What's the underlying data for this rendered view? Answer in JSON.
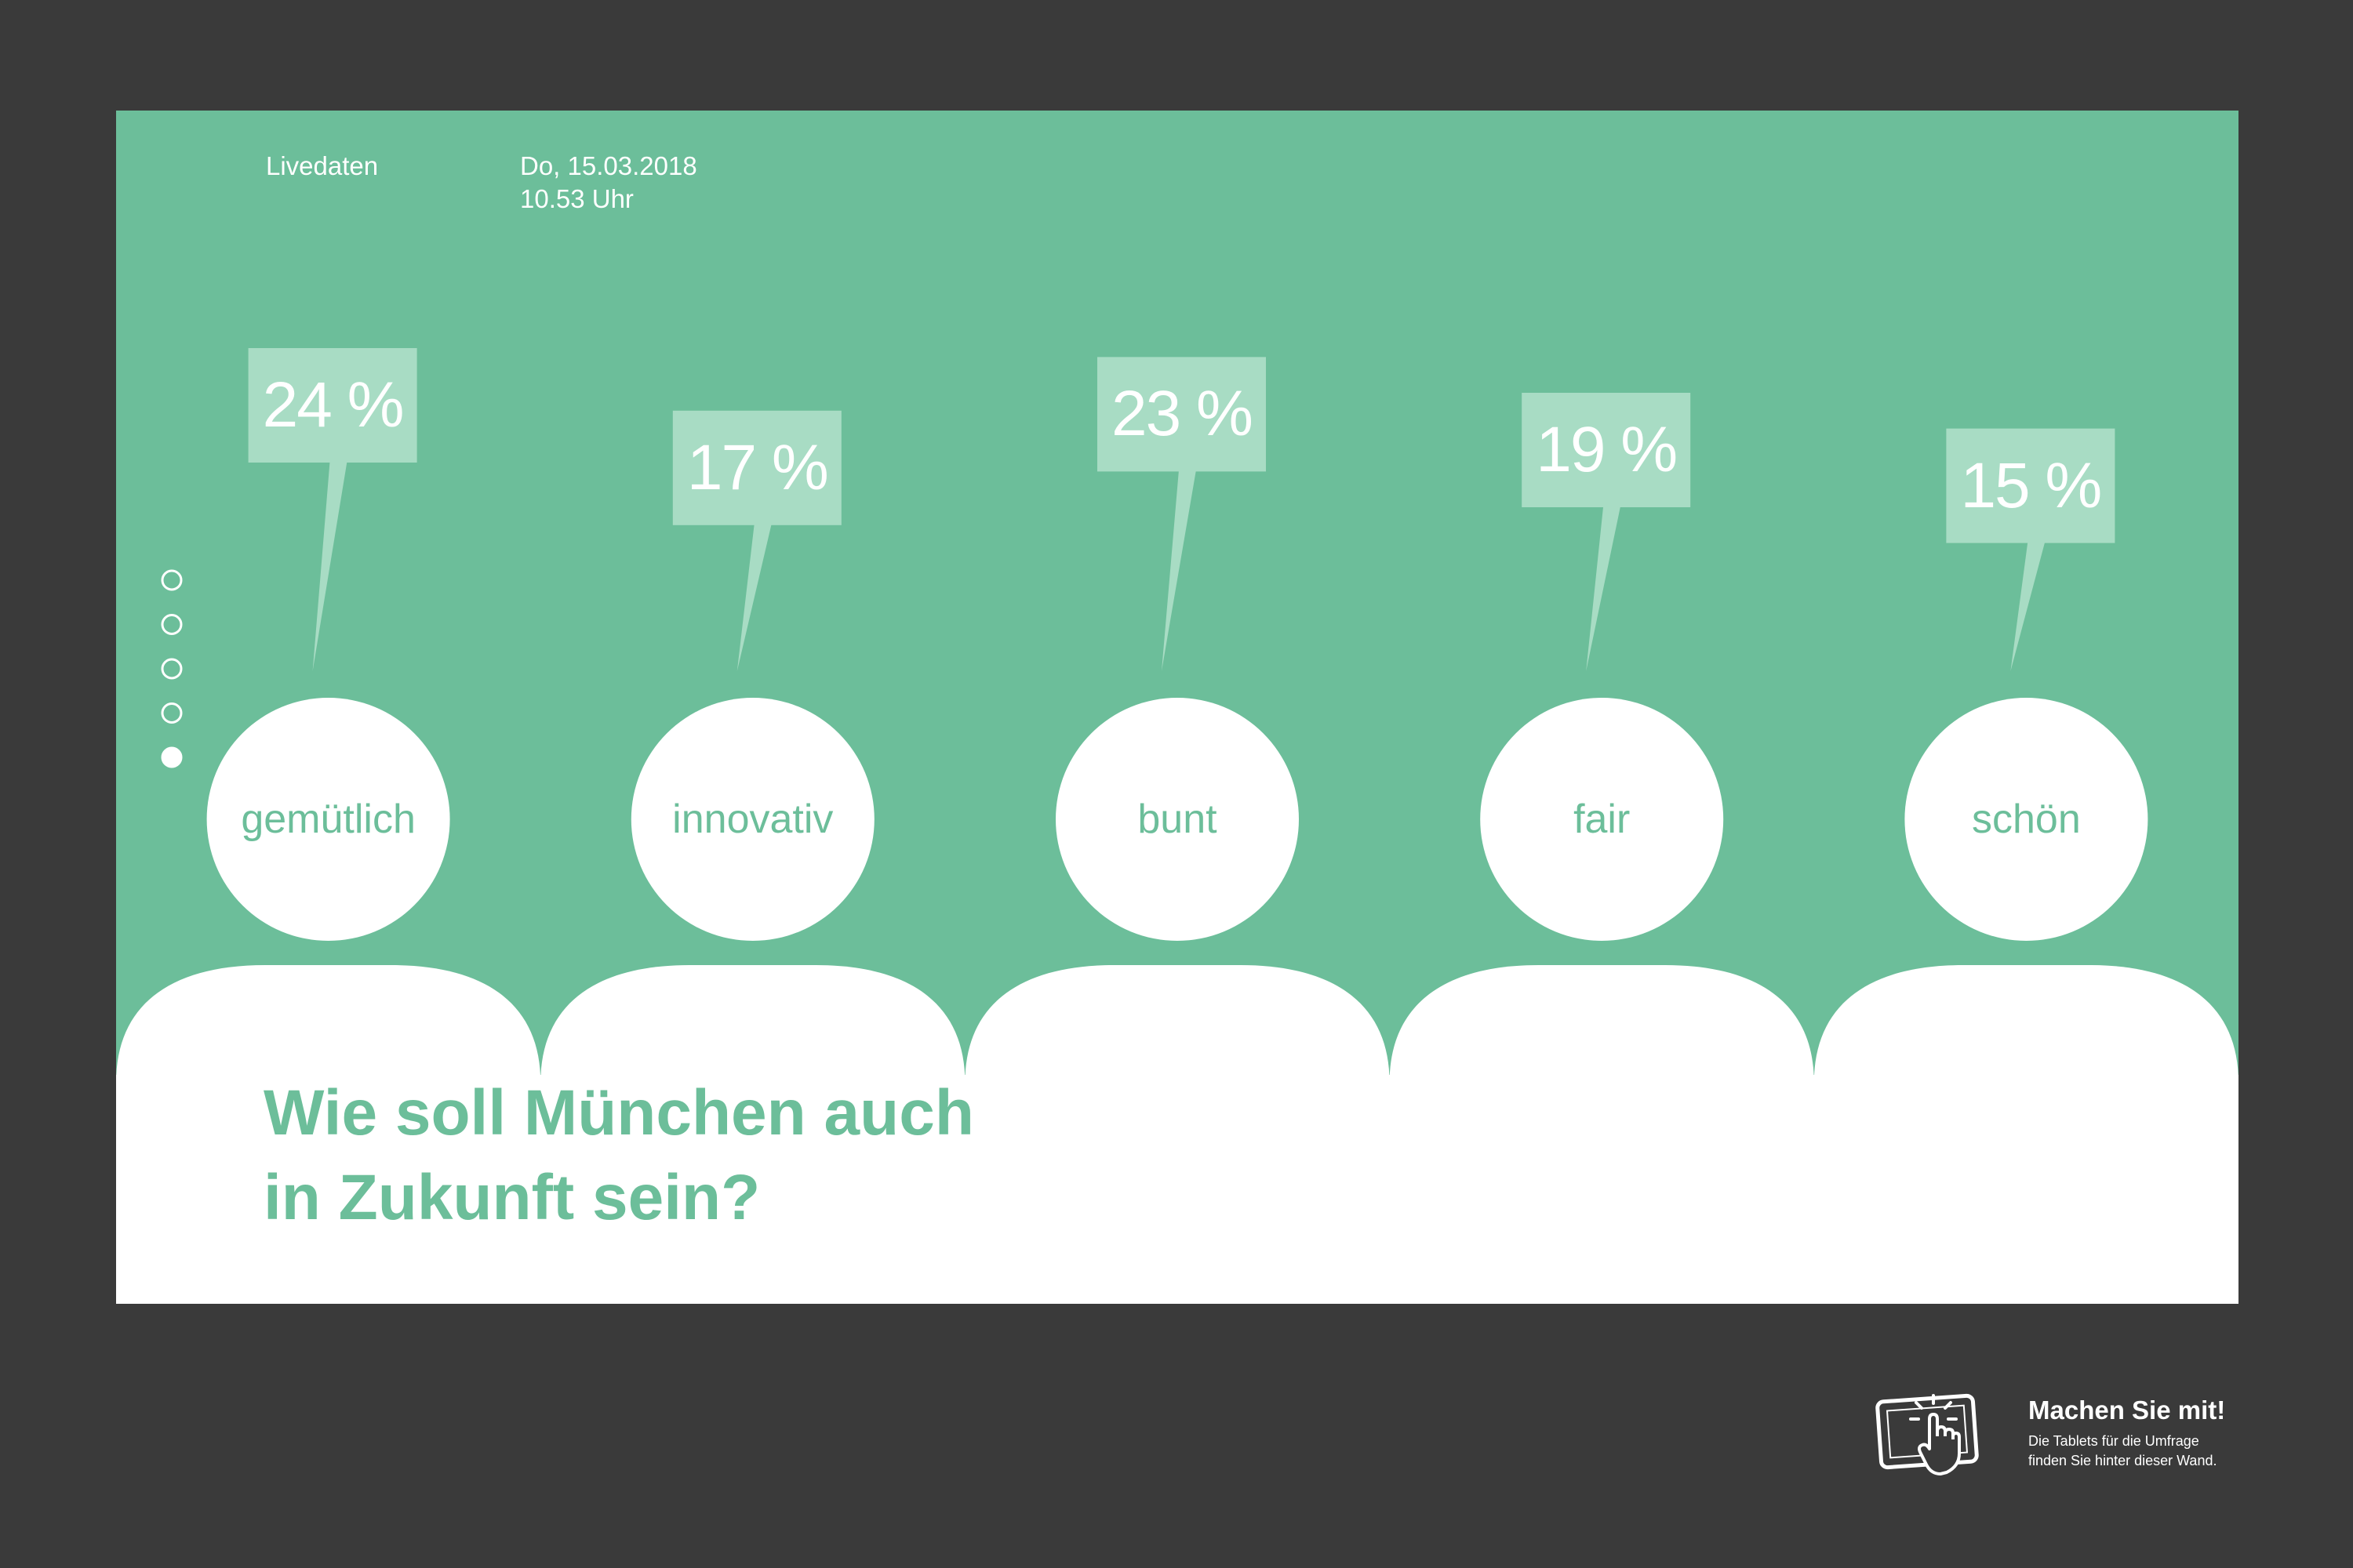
{
  "header": {
    "live_label": "Livedaten",
    "date": "Do, 15.03.2018",
    "time": "10.53 Uhr"
  },
  "pager": {
    "count": 5,
    "active_index": 4
  },
  "question": {
    "line1": "Wie soll München auch",
    "line2": "in Zukunft sein?"
  },
  "chart_data": {
    "type": "bar",
    "categories": [
      "gemütlich",
      "innovativ",
      "bunt",
      "fair",
      "schön"
    ],
    "values": [
      24,
      17,
      23,
      19,
      15
    ],
    "labels": [
      "24 %",
      "17 %",
      "23 %",
      "19 %",
      "15 %"
    ],
    "unit": "%"
  },
  "cta": {
    "title": "Machen Sie mit!",
    "line1": "Die Tablets für die Umfrage",
    "line2": "finden Sie hinter dieser Wand.",
    "icon": "tablet-touch-icon"
  },
  "colors": {
    "background": "#3a3a3a",
    "screen": "#6cbe9a",
    "accent": "#6cbe9a",
    "bubble": "#a8dcc4",
    "figure": "#ffffff"
  }
}
